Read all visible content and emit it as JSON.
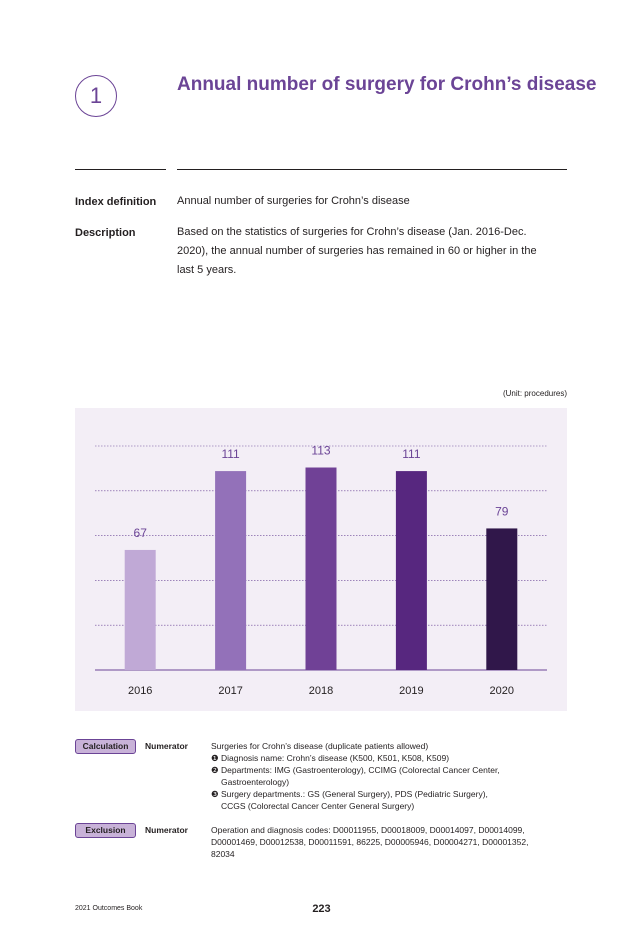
{
  "header": {
    "section_number": "1",
    "title": "Annual number of surgery for Crohn’s disease"
  },
  "definition": {
    "index_label": "Index definition",
    "index_text": "Annual number of surgeries for Crohn’s disease",
    "description_label": "Description",
    "description_lines": [
      "Based on the statistics of surgeries for Crohn’s disease (Jan. 2016-Dec.",
      "2020), the annual number of surgeries has remained in 60 or higher in the",
      "last 5 years."
    ]
  },
  "unit_note": "(Unit: procedures)",
  "chart_data": {
    "type": "bar",
    "categories": [
      "2016",
      "2017",
      "2018",
      "2019",
      "2020"
    ],
    "values": [
      67,
      111,
      113,
      111,
      79
    ],
    "bar_colors": [
      "#c0a9d6",
      "#9371b9",
      "#704196",
      "#57277f",
      "#30174a"
    ],
    "label_color": "#6b4496",
    "grid_color": "#6b4496",
    "ylim": [
      0,
      125
    ],
    "grid": true,
    "title": "",
    "xlabel": "",
    "ylabel": ""
  },
  "calculation": {
    "pill_label": "Calculation",
    "numerator_label": "Numerator",
    "lines": [
      "Surgeries for Crohn’s disease (duplicate patients allowed)",
      "❶ Diagnosis name: Crohn’s disease (K500, K501, K508, K509)",
      "❷ Departments: IMG (Gastroenterology), CCIMG (Colorectal Cancer Center,",
      "Gastroenterology)",
      "❸ Surgery departments.: GS (General Surgery), PDS (Pediatric Surgery),",
      "CCGS (Colorectal Cancer Center General Surgery)"
    ]
  },
  "exclusion": {
    "pill_label": "Exclusion",
    "numerator_label": "Numerator",
    "lines": [
      "Operation and diagnosis codes: D00011955, D00018009, D00014097, D00014099,",
      "D00001469, D00012538, D00011591, 86225, D00005946, D00004271, D00001352,",
      "82034"
    ]
  },
  "footer": {
    "book_name": "2021 Outcomes Book",
    "page_number": "223"
  }
}
